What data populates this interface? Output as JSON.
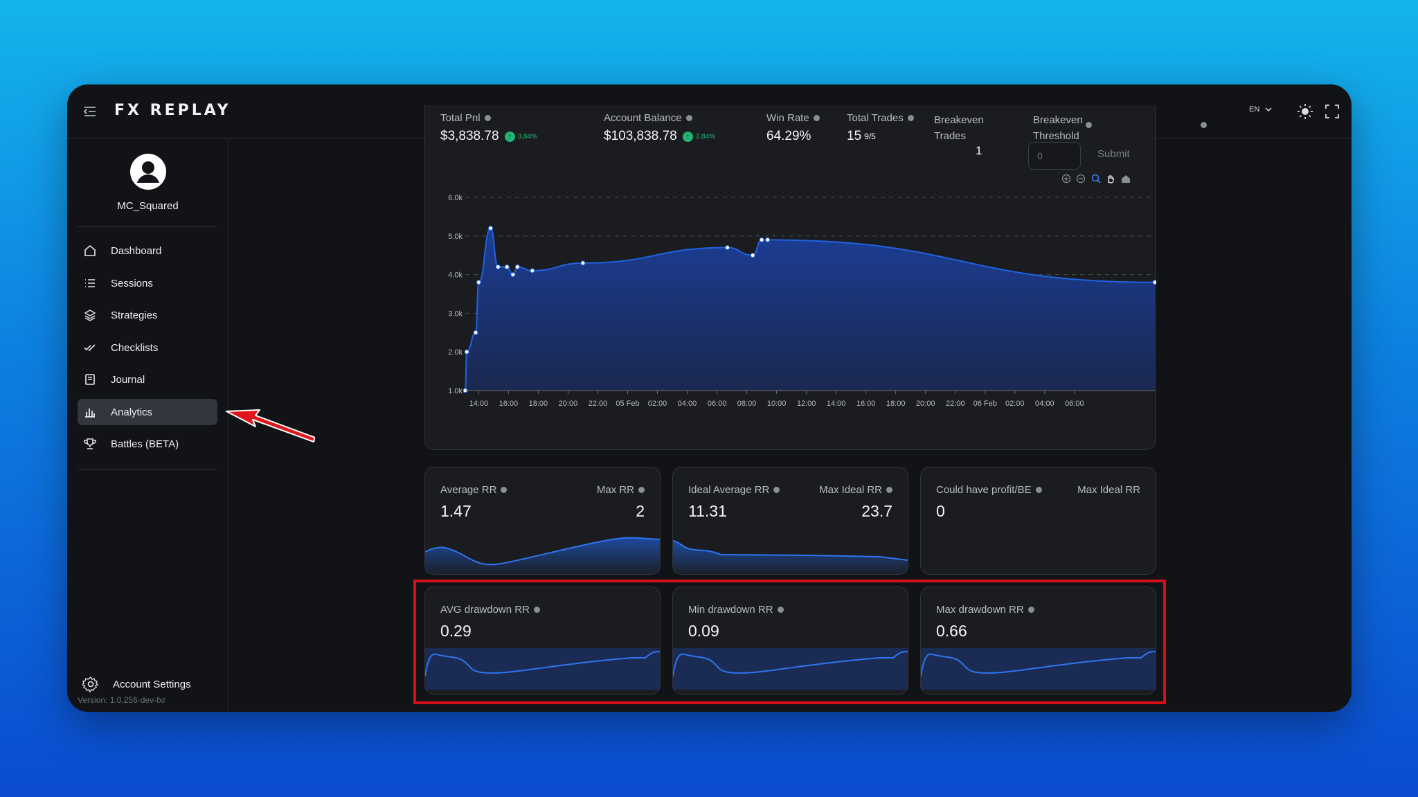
{
  "app": {
    "logo": "FX REPLAY",
    "language": "EN"
  },
  "user": {
    "name": "MC_Squared"
  },
  "sidebar": {
    "items": [
      {
        "label": "Dashboard",
        "icon": "home-icon"
      },
      {
        "label": "Sessions",
        "icon": "list-icon"
      },
      {
        "label": "Strategies",
        "icon": "layers-icon"
      },
      {
        "label": "Checklists",
        "icon": "checks-icon"
      },
      {
        "label": "Journal",
        "icon": "journal-icon"
      },
      {
        "label": "Analytics",
        "icon": "bar-chart-icon",
        "active": true
      },
      {
        "label": "Battles (BETA)",
        "icon": "trophy-icon"
      }
    ],
    "settings_label": "Account Settings",
    "version": "Version: 1.0.256-dev-fxr"
  },
  "stats": {
    "total_pnl": {
      "label": "Total Pnl",
      "value": "$3,838.78",
      "change": "3.84%"
    },
    "account_balance": {
      "label": "Account Balance",
      "value": "$103,838.78",
      "change": "3.84%"
    },
    "win_rate": {
      "label": "Win Rate",
      "value": "64.29%"
    },
    "total_trades": {
      "label": "Total Trades",
      "value": "15",
      "fraction": "9/5"
    },
    "breakeven_trades": {
      "label_line1": "Breakeven",
      "label_line2": "Trades",
      "value": "1"
    },
    "breakeven_threshold": {
      "label_line1": "Breakeven",
      "label_line2": "Threshold",
      "input_value": "0",
      "submit_label": "Submit"
    }
  },
  "chart_data": {
    "type": "area",
    "y_tick_labels": [
      "6.0k",
      "5.0k",
      "4.0k",
      "3.0k",
      "2.0k",
      "1.0k"
    ],
    "ylim": [
      1000,
      6000
    ],
    "x_tick_labels": [
      "14:00",
      "16:00",
      "18:00",
      "20:00",
      "22:00",
      "05 Feb",
      "02:00",
      "04:00",
      "06:00",
      "08:00",
      "10:00",
      "12:00",
      "14:00",
      "16:00",
      "18:00",
      "20:00",
      "22:00",
      "06 Feb",
      "02:00",
      "04:00",
      "06:00"
    ],
    "x": [
      0.0,
      0.1,
      0.7,
      0.9,
      1.7,
      2.2,
      2.8,
      3.2,
      3.5,
      4.5,
      7.9,
      17.6,
      19.3,
      19.9,
      20.3,
      46.3
    ],
    "y": [
      1000,
      2000,
      2500,
      3800,
      5200,
      4200,
      4200,
      4000,
      4200,
      4100,
      4300,
      4700,
      4500,
      4900,
      4900,
      3800
    ],
    "grid": true,
    "accent": "#1f63e0"
  },
  "rr_cards": [
    {
      "label": "Average RR",
      "value": "1.47",
      "label_right": "Max RR",
      "value_right": "2"
    },
    {
      "label": "Ideal Average RR",
      "value": "11.31",
      "label_right": "Max Ideal RR",
      "value_right": "23.7"
    },
    {
      "label": "Could have profit/BE",
      "value": "0",
      "label_right": "Max Ideal RR",
      "value_right": ""
    }
  ],
  "drawdown_cards": [
    {
      "label": "AVG drawdown RR",
      "value": "0.29"
    },
    {
      "label": "Min drawdown RR",
      "value": "0.09"
    },
    {
      "label": "Max drawdown RR",
      "value": "0.66"
    }
  ],
  "colors": {
    "accent": "#1f63e0",
    "positive": "#22b573",
    "highlight": "#d90f17",
    "arrow": "#e0141b"
  }
}
